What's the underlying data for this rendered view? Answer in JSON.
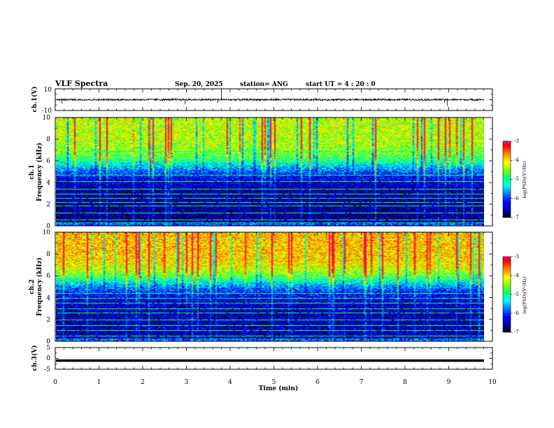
{
  "header": {
    "title": "VLF Spectra",
    "date": "Sep. 20, 2025",
    "station": "station= ANG",
    "start": "start  UT =   4 : 20 : 0"
  },
  "chart_data": [
    {
      "type": "line",
      "title": "VLF Spectra",
      "ylabel": "ch.1(V)",
      "ylim": [
        -10,
        10
      ],
      "yticks": [
        "10",
        "-10"
      ],
      "xlim": [
        0,
        10
      ],
      "baseline": 0,
      "noise_amplitude": 1,
      "spikes": [
        {
          "x": 0.15,
          "y": -3.5
        },
        {
          "x": 2.97,
          "y": -4
        },
        {
          "x": 3.8,
          "y": 10
        },
        {
          "x": 3.72,
          "y": -3
        },
        {
          "x": 5.95,
          "y": 2
        },
        {
          "x": 8.9,
          "y": -3
        },
        {
          "x": 8.97,
          "y": -6
        }
      ]
    },
    {
      "type": "heatmap",
      "ylabel": "ch.1\nFrequency (kHz)",
      "ylim": [
        0,
        10
      ],
      "yticks": [
        "0",
        "2",
        "4",
        "6",
        "8",
        "10"
      ],
      "xlim": [
        0,
        10
      ],
      "zlim": [
        -7,
        -3
      ],
      "colorbar_label": "log(PSD)(V²/Hz)",
      "colorbar_ticks": [
        "-3",
        "-4",
        "-5",
        "-6",
        "-7"
      ],
      "noise_floor": -6.6,
      "high_freq_level": -4.3,
      "transition_khz": 5.5,
      "bands_khz": [
        0.3,
        0.6,
        1.2,
        1.9,
        2.2,
        2.6,
        3.0,
        3.4,
        4.1,
        4.7,
        6.9
      ]
    },
    {
      "type": "heatmap",
      "ylabel": "ch.2\nFrequency (kHz)",
      "ylim": [
        0,
        10
      ],
      "yticks": [
        "0",
        "2",
        "4",
        "6",
        "8",
        "10"
      ],
      "xlim": [
        0,
        10
      ],
      "zlim": [
        -7,
        -3
      ],
      "colorbar_label": "log(PSD)(V²/Hz)",
      "colorbar_ticks": [
        "-3",
        "-4",
        "-5",
        "-6",
        "-7"
      ],
      "noise_floor": -6.5,
      "high_freq_level": -3.9,
      "transition_khz": 5.5,
      "bands_khz": [
        0.5,
        1.0,
        1.5,
        2.0,
        2.6,
        3.0,
        3.5,
        4.0,
        4.4
      ]
    },
    {
      "type": "line",
      "ylabel": "ch.3(V)",
      "ylim": [
        -5,
        5
      ],
      "yticks": [
        "5",
        "0",
        "-5"
      ],
      "xlim": [
        0,
        10
      ],
      "baseline": -1,
      "xticks": [
        "0",
        "1",
        "2",
        "3",
        "4",
        "5",
        "6",
        "7",
        "8",
        "9",
        "10"
      ],
      "xlabel": "Time  (min)"
    }
  ],
  "colors": {
    "colormap": [
      "#000000",
      "#0000a0",
      "#0000ff",
      "#0080ff",
      "#00ffff",
      "#00ff80",
      "#80ff00",
      "#ffff00",
      "#ff8000",
      "#ff0000",
      "#ff0060"
    ],
    "band_color": "#40ffb0"
  }
}
